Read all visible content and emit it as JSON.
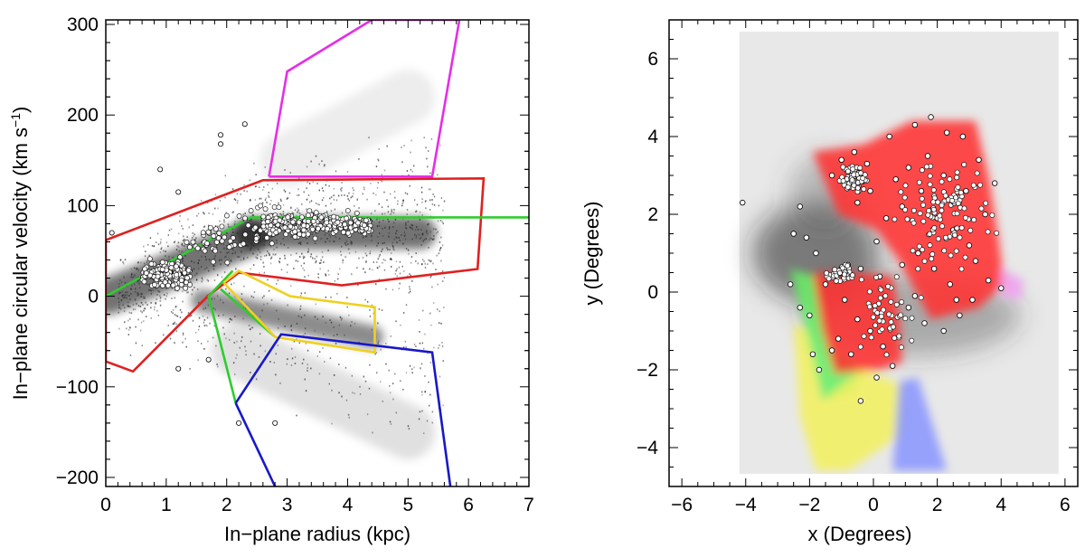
{
  "chart_data": [
    {
      "type": "scatter",
      "xlabel": "In−plane radius (kpc)",
      "ylabel_main": "In−plane circular velocity (km s",
      "ylabel_sup": "−1",
      "ylabel_close": ")",
      "xlim": [
        0,
        7
      ],
      "ylim": [
        -210,
        305
      ],
      "xticks": [
        0,
        1,
        2,
        3,
        4,
        5,
        6,
        7
      ],
      "yticks": [
        -200,
        -100,
        0,
        100,
        200,
        300
      ],
      "tick_labels_x": [
        "0",
        "1",
        "2",
        "3",
        "4",
        "5",
        "6",
        "7"
      ],
      "tick_labels_y": [
        "−200",
        "−100",
        "0",
        "100",
        "200",
        "300"
      ],
      "colors": {
        "magenta": "#e62ee6",
        "red": "#e02020",
        "green": "#2ecc2e",
        "yellow": "#f0d020",
        "blue": "#1818c8"
      },
      "series": [
        {
          "color": "magenta",
          "values": [
            [
              2.7,
              132
            ],
            [
              3.0,
              248
            ],
            [
              4.4,
              305
            ],
            [
              5.85,
              305
            ],
            [
              5.4,
              132
            ],
            [
              2.7,
              132
            ]
          ]
        },
        {
          "color": "red",
          "values": [
            [
              0.0,
              62
            ],
            [
              2.6,
              128
            ],
            [
              6.25,
              130
            ],
            [
              6.15,
              30
            ],
            [
              3.9,
              12
            ],
            [
              2.2,
              26
            ],
            [
              1.7,
              1
            ],
            [
              0.45,
              -83
            ],
            [
              0.0,
              -72
            ],
            [
              0.0,
              62
            ]
          ]
        },
        {
          "color": "green",
          "values": [
            [
              0.0,
              0
            ],
            [
              2.4,
              87
            ],
            [
              7.0,
              87
            ]
          ]
        },
        {
          "color": "green",
          "values": [
            [
              2.1,
              28
            ],
            [
              1.7,
              0
            ],
            [
              2.15,
              -118
            ]
          ]
        },
        {
          "color": "green",
          "values": [
            [
              1.9,
              8
            ],
            [
              2.8,
              -45
            ]
          ]
        },
        {
          "color": "yellow",
          "values": [
            [
              1.95,
              15
            ],
            [
              2.2,
              28
            ],
            [
              3.05,
              0
            ],
            [
              4.45,
              -12
            ],
            [
              4.45,
              -62
            ],
            [
              2.8,
              -45
            ],
            [
              1.95,
              15
            ]
          ]
        },
        {
          "color": "blue",
          "values": [
            [
              2.15,
              -118
            ],
            [
              2.9,
              -42
            ],
            [
              5.4,
              -62
            ],
            [
              5.7,
              -210
            ]
          ]
        },
        {
          "color": "blue",
          "values": [
            [
              2.15,
              -118
            ],
            [
              2.8,
              -210
            ]
          ]
        }
      ]
    },
    {
      "type": "scatter",
      "xlabel": "x (Degrees)",
      "ylabel": "y (Degrees)",
      "xlim": [
        -6.4,
        6.4
      ],
      "ylim": [
        -5.0,
        7.0
      ],
      "xticks": [
        -6,
        -4,
        -2,
        0,
        2,
        4,
        6
      ],
      "yticks": [
        -4,
        -2,
        0,
        2,
        4,
        6
      ],
      "tick_labels_x": [
        "−6",
        "−4",
        "−2",
        "0",
        "2",
        "4",
        "6"
      ],
      "tick_labels_y": [
        "−4",
        "−2",
        "0",
        "2",
        "4",
        "6"
      ],
      "map_extent": {
        "x": [
          -4.2,
          5.8
        ],
        "y": [
          -4.7,
          6.7
        ]
      },
      "colors": {
        "background": "#e8e8e8",
        "red": "#ff3030",
        "green": "#66ee66",
        "yellow": "#f2f060",
        "blue": "#8a96ff",
        "pink": "#f0a0f0"
      },
      "regions": [
        {
          "color": "green",
          "values": [
            [
              -2.6,
              0.6
            ],
            [
              -1.8,
              0.4
            ],
            [
              -1.3,
              -1.4
            ],
            [
              -0.4,
              -2.0
            ],
            [
              -0.6,
              -2.6
            ],
            [
              -1.6,
              -2.8
            ],
            [
              -2.1,
              -1.0
            ],
            [
              -2.6,
              0.6
            ]
          ]
        },
        {
          "color": "yellow",
          "values": [
            [
              -2.5,
              -0.8
            ],
            [
              -2.1,
              -1.0
            ],
            [
              -1.6,
              -2.8
            ],
            [
              -0.4,
              -2.0
            ],
            [
              1.0,
              -2.4
            ],
            [
              1.0,
              -3.6
            ],
            [
              -0.8,
              -4.6
            ],
            [
              -1.8,
              -4.6
            ],
            [
              -2.3,
              -3.2
            ],
            [
              -2.5,
              -0.8
            ]
          ]
        },
        {
          "color": "blue",
          "values": [
            [
              0.8,
              -2.3
            ],
            [
              1.4,
              -2.2
            ],
            [
              2.3,
              -4.6
            ],
            [
              0.6,
              -4.6
            ],
            [
              0.8,
              -2.3
            ]
          ]
        },
        {
          "color": "red",
          "values": [
            [
              -1.9,
              3.6
            ],
            [
              -0.3,
              3.8
            ],
            [
              1.2,
              4.4
            ],
            [
              3.2,
              4.4
            ],
            [
              3.6,
              3.0
            ],
            [
              3.9,
              1.5
            ],
            [
              4.1,
              0.2
            ],
            [
              3.3,
              -0.4
            ],
            [
              1.8,
              -0.7
            ],
            [
              0.8,
              0.8
            ],
            [
              0.1,
              1.6
            ],
            [
              -1.1,
              2.0
            ],
            [
              -1.9,
              3.6
            ]
          ]
        },
        {
          "color": "red",
          "values": [
            [
              -1.9,
              0.5
            ],
            [
              -0.6,
              0.5
            ],
            [
              0.6,
              0.4
            ],
            [
              0.8,
              -0.6
            ],
            [
              0.9,
              -1.8
            ],
            [
              0.2,
              -2.0
            ],
            [
              -1.2,
              -2.1
            ],
            [
              -1.6,
              -1.0
            ],
            [
              -1.9,
              0.5
            ]
          ]
        },
        {
          "color": "pink",
          "values": [
            [
              4.0,
              0.6
            ],
            [
              4.7,
              0.3
            ],
            [
              4.6,
              -0.2
            ],
            [
              4.0,
              -0.1
            ],
            [
              4.0,
              0.6
            ]
          ]
        }
      ],
      "points": [
        [
          -4.1,
          2.3
        ],
        [
          -2.3,
          2.2
        ],
        [
          -2.1,
          1.4
        ],
        [
          -1.8,
          1.0
        ],
        [
          -2.5,
          1.5
        ],
        [
          -2.6,
          0.2
        ],
        [
          -2.3,
          -0.4
        ],
        [
          -2.0,
          -0.6
        ],
        [
          -1.9,
          -1.6
        ],
        [
          -1.7,
          -2.0
        ],
        [
          -1.3,
          -1.5
        ],
        [
          -0.4,
          -2.8
        ],
        [
          -0.6,
          3.6
        ],
        [
          -0.2,
          3.3
        ],
        [
          0.5,
          4.0
        ],
        [
          1.3,
          4.3
        ],
        [
          1.8,
          4.5
        ],
        [
          2.3,
          4.1
        ],
        [
          2.8,
          4.0
        ],
        [
          3.3,
          3.4
        ],
        [
          3.8,
          2.8
        ],
        [
          3.5,
          2.0
        ],
        [
          3.0,
          1.2
        ],
        [
          2.5,
          1.6
        ],
        [
          2.0,
          1.9
        ],
        [
          1.5,
          2.6
        ],
        [
          0.9,
          2.2
        ],
        [
          0.4,
          1.9
        ],
        [
          0.1,
          1.3
        ],
        [
          -0.4,
          0.6
        ],
        [
          -0.8,
          0.7
        ],
        [
          -1.2,
          0.5
        ],
        [
          -1.5,
          0.2
        ],
        [
          -0.9,
          -0.2
        ],
        [
          -0.5,
          -0.7
        ],
        [
          -0.1,
          -1.0
        ],
        [
          0.3,
          -1.4
        ],
        [
          0.6,
          -1.9
        ],
        [
          0.1,
          -2.2
        ],
        [
          -0.7,
          -1.6
        ],
        [
          -1.1,
          -1.2
        ],
        [
          1.1,
          -0.4
        ],
        [
          1.6,
          -0.8
        ],
        [
          2.2,
          -1.0
        ],
        [
          2.7,
          -0.6
        ],
        [
          3.1,
          -0.2
        ],
        [
          3.6,
          0.3
        ],
        [
          4.0,
          0.1
        ],
        [
          2.4,
          0.2
        ],
        [
          1.9,
          0.6
        ],
        [
          1.4,
          1.0
        ],
        [
          0.9,
          0.7
        ],
        [
          2.9,
          2.6
        ],
        [
          2.2,
          3.0
        ],
        [
          1.7,
          3.5
        ],
        [
          1.1,
          3.2
        ],
        [
          0.7,
          2.9
        ],
        [
          -0.1,
          2.6
        ],
        [
          -0.5,
          2.3
        ],
        [
          -0.9,
          2.8
        ],
        [
          -1.3,
          3.0
        ],
        [
          -1.0,
          3.4
        ],
        [
          3.2,
          0.8
        ],
        [
          2.6,
          -0.2
        ],
        [
          1.3,
          -0.1
        ],
        [
          0.2,
          0.4
        ]
      ]
    }
  ]
}
